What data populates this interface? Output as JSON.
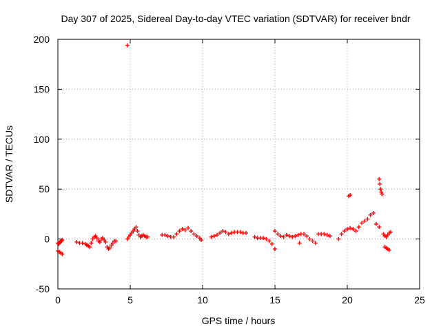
{
  "chart_data": {
    "type": "scatter",
    "title": "Day 307 of 2025, Sidereal Day-to-day VTEC variation (SDTVAR) for receiver bndr",
    "xlabel": "GPS time / hours",
    "ylabel": "SDTVAR / TECUs",
    "xlim": [
      0,
      25
    ],
    "ylim": [
      -50,
      200
    ],
    "xticks": [
      0,
      5,
      10,
      15,
      20,
      25
    ],
    "yticks": [
      -50,
      0,
      50,
      100,
      150,
      200
    ],
    "xtick_labels": [
      "0",
      "5",
      "10",
      "15",
      "20",
      "25"
    ],
    "ytick_labels": [
      "-50",
      "0",
      "50",
      "100",
      "150",
      "200"
    ],
    "grid": true,
    "marker": "+",
    "color": "#ff0000",
    "series": [
      {
        "name": "SDTVAR",
        "x": [
          0.0,
          0.05,
          0.1,
          0.15,
          0.2,
          0.25,
          0.3,
          0.0,
          0.1,
          0.2,
          0.3,
          1.3,
          1.5,
          1.7,
          1.9,
          2.0,
          2.1,
          2.2,
          2.3,
          2.4,
          2.5,
          2.6,
          2.7,
          2.8,
          2.9,
          3.0,
          3.1,
          3.2,
          3.3,
          3.4,
          3.5,
          3.6,
          3.7,
          3.8,
          3.9,
          4.0,
          4.8,
          4.8,
          4.9,
          5.0,
          5.1,
          5.2,
          5.3,
          5.4,
          5.5,
          5.6,
          5.7,
          5.8,
          5.9,
          6.0,
          6.1,
          6.2,
          7.2,
          7.4,
          7.6,
          7.8,
          8.0,
          8.2,
          8.4,
          8.6,
          8.8,
          9.0,
          9.2,
          9.4,
          9.6,
          9.8,
          9.9,
          10.6,
          10.8,
          11.0,
          11.2,
          11.4,
          11.6,
          11.8,
          12.0,
          12.2,
          12.4,
          12.6,
          12.8,
          13.0,
          13.6,
          13.8,
          14.0,
          14.2,
          14.4,
          14.6,
          14.8,
          15.0,
          15.0,
          15.2,
          15.4,
          15.6,
          15.8,
          16.0,
          16.2,
          16.4,
          16.6,
          16.8,
          17.0,
          17.2,
          17.4,
          17.6,
          17.8,
          18.0,
          18.2,
          18.4,
          18.6,
          18.8,
          16.7,
          19.4,
          19.6,
          19.8,
          20.0,
          20.2,
          20.4,
          20.6,
          20.8,
          21.0,
          21.2,
          21.4,
          21.6,
          21.8,
          22.0,
          22.2,
          20.1,
          20.2,
          22.2,
          22.25,
          22.3,
          22.35,
          22.4,
          22.5,
          22.6,
          22.7,
          22.8,
          22.9,
          23.0,
          22.6,
          22.7,
          22.8,
          22.9
        ],
        "y": [
          -4,
          -5,
          -4,
          -3,
          -2,
          -2,
          -1,
          -12,
          -13,
          -14,
          -15,
          -3,
          -4,
          -4,
          -5,
          -6,
          -7,
          -8,
          -4,
          0,
          2,
          3,
          1,
          -2,
          -3,
          0,
          1,
          -1,
          -3,
          -8,
          -10,
          -9,
          -6,
          -4,
          -2,
          -2,
          194,
          0,
          2,
          4,
          6,
          8,
          10,
          12,
          8,
          4,
          2,
          3,
          4,
          3,
          2,
          2,
          4,
          4,
          3,
          2,
          2,
          5,
          8,
          10,
          9,
          11,
          8,
          5,
          3,
          1,
          -1,
          2,
          3,
          4,
          6,
          8,
          7,
          5,
          6,
          7,
          7,
          7,
          6,
          6,
          2,
          1,
          1,
          1,
          0,
          -2,
          -5,
          -10,
          8,
          5,
          3,
          2,
          4,
          3,
          2,
          3,
          4,
          5,
          5,
          3,
          0,
          -2,
          -4,
          5,
          5,
          5,
          4,
          3,
          -4,
          0,
          5,
          8,
          10,
          11,
          10,
          8,
          12,
          16,
          18,
          20,
          24,
          26,
          15,
          12,
          43,
          44,
          60,
          55,
          50,
          47,
          45,
          5,
          3,
          2,
          4,
          6,
          7,
          -8,
          -9,
          -10,
          -11
        ]
      }
    ]
  }
}
